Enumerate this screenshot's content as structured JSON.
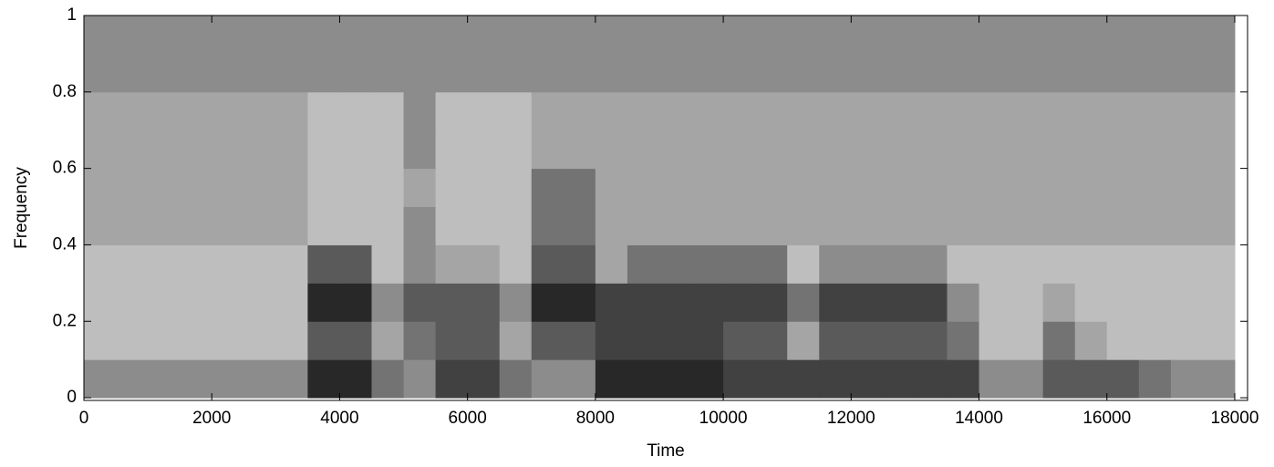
{
  "chart_data": {
    "type": "heatmap",
    "colormap": "gray",
    "x_label": "Time",
    "y_label": "Frequency",
    "xlim": [
      0,
      18200
    ],
    "ylim": [
      -0.007,
      1
    ],
    "xticks": [
      0,
      2000,
      4000,
      6000,
      8000,
      10000,
      12000,
      14000,
      16000,
      18000
    ],
    "yticks": [
      0,
      0.2,
      0.4,
      0.6,
      0.8,
      1
    ],
    "x_bins": [
      0,
      500,
      1000,
      1500,
      2000,
      2500,
      3000,
      3500,
      4000,
      4500,
      5000,
      5500,
      6000,
      6500,
      7000,
      7500,
      8000,
      8500,
      9000,
      9500,
      10000,
      10500,
      11000,
      11500,
      12000,
      12500,
      13000,
      13500,
      14000,
      14500,
      15000,
      15500,
      16000,
      16500,
      17000,
      17500,
      18000
    ],
    "y_bins": [
      0,
      0.1,
      0.2,
      0.3,
      0.4,
      0.5,
      0.6,
      0.7,
      0.8,
      0.9,
      1
    ],
    "z": [
      [
        4,
        4,
        4,
        4,
        4,
        4,
        4,
        8,
        8,
        5,
        4,
        7,
        7,
        5,
        4,
        4,
        8,
        8,
        8,
        8,
        7,
        7,
        7,
        7,
        7,
        7,
        7,
        7,
        4,
        4,
        6,
        6,
        6,
        5,
        4,
        4
      ],
      [
        2,
        2,
        2,
        2,
        2,
        2,
        2,
        6,
        6,
        3,
        5,
        6,
        6,
        3,
        6,
        6,
        7,
        7,
        7,
        7,
        6,
        6,
        3,
        6,
        6,
        6,
        6,
        5,
        2,
        2,
        5,
        3,
        2,
        2,
        2,
        2
      ],
      [
        2,
        2,
        2,
        2,
        2,
        2,
        2,
        8,
        8,
        4,
        6,
        6,
        6,
        4,
        8,
        8,
        7,
        7,
        7,
        7,
        7,
        7,
        5,
        7,
        7,
        7,
        7,
        4,
        2,
        2,
        3,
        2,
        2,
        2,
        2,
        2
      ],
      [
        2,
        2,
        2,
        2,
        2,
        2,
        2,
        6,
        6,
        2,
        4,
        3,
        3,
        2,
        6,
        6,
        3,
        5,
        5,
        5,
        5,
        5,
        2,
        4,
        4,
        4,
        4,
        2,
        2,
        2,
        2,
        2,
        2,
        2,
        2,
        2
      ],
      [
        3,
        3,
        3,
        3,
        3,
        3,
        3,
        2,
        2,
        2,
        4,
        2,
        2,
        2,
        5,
        5,
        3,
        3,
        3,
        3,
        3,
        3,
        3,
        3,
        3,
        3,
        3,
        3,
        3,
        3,
        3,
        3,
        3,
        3,
        3,
        3
      ],
      [
        3,
        3,
        3,
        3,
        3,
        3,
        3,
        2,
        2,
        2,
        3,
        2,
        2,
        2,
        5,
        5,
        3,
        3,
        3,
        3,
        3,
        3,
        3,
        3,
        3,
        3,
        3,
        3,
        3,
        3,
        3,
        3,
        3,
        3,
        3,
        3
      ],
      [
        3,
        3,
        3,
        3,
        3,
        3,
        3,
        2,
        2,
        2,
        4,
        2,
        2,
        2,
        3,
        3,
        3,
        3,
        3,
        3,
        3,
        3,
        3,
        3,
        3,
        3,
        3,
        3,
        3,
        3,
        3,
        3,
        3,
        3,
        3,
        3
      ],
      [
        3,
        3,
        3,
        3,
        3,
        3,
        3,
        2,
        2,
        2,
        4,
        2,
        2,
        2,
        3,
        3,
        3,
        3,
        3,
        3,
        3,
        3,
        3,
        3,
        3,
        3,
        3,
        3,
        3,
        3,
        3,
        3,
        3,
        3,
        3,
        3
      ],
      [
        4,
        4,
        4,
        4,
        4,
        4,
        4,
        4,
        4,
        4,
        4,
        4,
        4,
        4,
        4,
        4,
        4,
        4,
        4,
        4,
        4,
        4,
        4,
        4,
        4,
        4,
        4,
        4,
        4,
        4,
        4,
        4,
        4,
        4,
        4,
        4
      ],
      [
        4,
        4,
        4,
        4,
        4,
        4,
        4,
        4,
        4,
        4,
        4,
        4,
        4,
        4,
        4,
        4,
        4,
        4,
        4,
        4,
        4,
        4,
        4,
        4,
        4,
        4,
        4,
        4,
        4,
        4,
        4,
        4,
        4,
        4,
        4,
        4
      ]
    ]
  }
}
